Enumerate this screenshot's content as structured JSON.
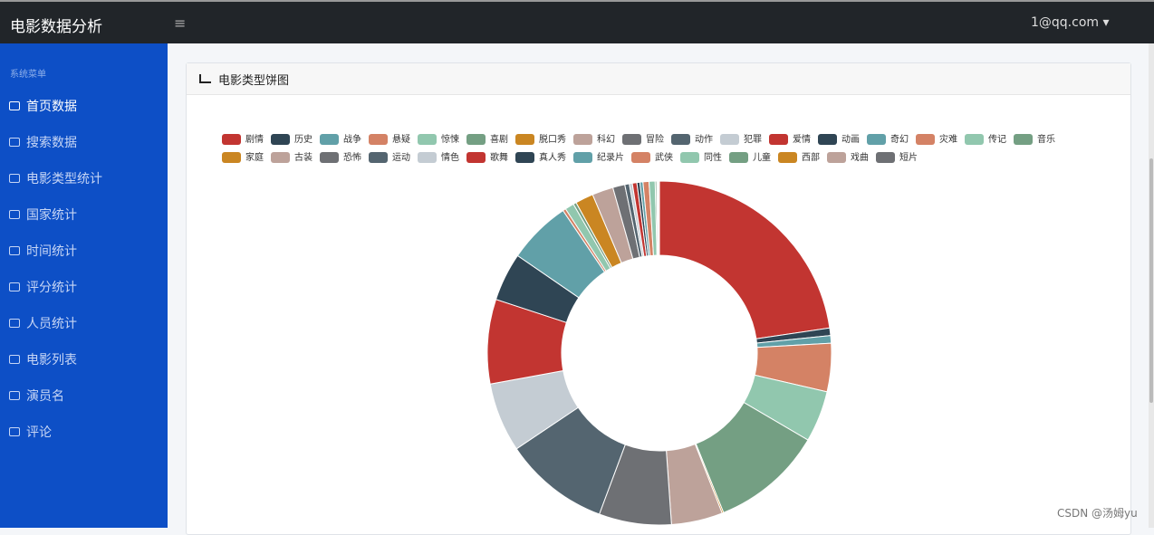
{
  "header": {
    "title": "电影数据分析",
    "user": "1@qq.com"
  },
  "sidebar": {
    "heading": "系统菜单",
    "items": [
      "首页数据",
      "搜索数据",
      "电影类型统计",
      "国家统计",
      "时间统计",
      "评分统计",
      "人员统计",
      "电影列表",
      "演员名",
      "评论"
    ]
  },
  "card": {
    "title": "电影类型饼图"
  },
  "watermark": "CSDN @汤姆yu",
  "chart_data": {
    "type": "pie",
    "categories": [
      "剧情",
      "历史",
      "战争",
      "悬疑",
      "惊悚",
      "喜剧",
      "脱口秀",
      "科幻",
      "冒险",
      "动作",
      "犯罪",
      "爱情",
      "动画",
      "奇幻",
      "灾难",
      "传记",
      "音乐",
      "家庭",
      "古装",
      "恐怖",
      "运动",
      "情色",
      "歌舞",
      "真人秀",
      "纪录片",
      "武侠",
      "同性",
      "儿童",
      "西部",
      "戏曲",
      "短片"
    ],
    "values": [
      80,
      2.5,
      2.5,
      16,
      17,
      37,
      0.5,
      17,
      24,
      35,
      23,
      28,
      16,
      21,
      1,
      3,
      1,
      6,
      7,
      4,
      1.5,
      1,
      1.5,
      1,
      1,
      2,
      2,
      0.5,
      0.3,
      0.3,
      0.3
    ],
    "colors": [
      "#c23531",
      "#2f4554",
      "#61a0a8",
      "#d48265",
      "#91c7ae",
      "#749f83",
      "#ca8622",
      "#bda29a",
      "#6e7074",
      "#546570",
      "#c4ccd3",
      "#c23531",
      "#2f4554",
      "#61a0a8",
      "#d48265",
      "#91c7ae",
      "#749f83",
      "#ca8622",
      "#bda29a",
      "#6e7074",
      "#546570",
      "#c4ccd3",
      "#c23531",
      "#2f4554",
      "#61a0a8",
      "#d48265",
      "#91c7ae",
      "#749f83",
      "#ca8622",
      "#bda29a",
      "#6e7074"
    ]
  }
}
